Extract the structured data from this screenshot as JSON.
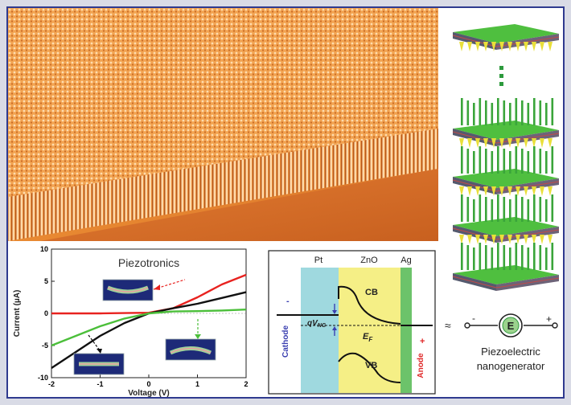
{
  "iv_plot": {
    "title": "Piezotronics",
    "xlabel": "Voltage (V)",
    "ylabel": "Current (µA)",
    "x_ticks": [
      "-2",
      "-1",
      "0",
      "1",
      "2"
    ],
    "y_ticks": [
      "10",
      "5",
      "0",
      "-5",
      "-10"
    ]
  },
  "chart_data": {
    "type": "line",
    "xlim": [
      -2,
      2
    ],
    "ylim": [
      -10,
      10
    ],
    "series": [
      {
        "color": "#e8221f",
        "x": [
          -2,
          -1.5,
          -1,
          -0.5,
          0,
          0.5,
          1,
          1.5,
          2
        ],
        "y": [
          0,
          0,
          0,
          0.05,
          0.1,
          0.8,
          2.5,
          4.5,
          6
        ]
      },
      {
        "color": "#111111",
        "x": [
          -2,
          -1.5,
          -1,
          -0.5,
          0,
          0.5,
          1,
          1.5,
          2
        ],
        "y": [
          -8.5,
          -6,
          -3.5,
          -1.5,
          0,
          0.8,
          1.5,
          2.4,
          3.3
        ]
      },
      {
        "color": "#4bbf3a",
        "x": [
          -2,
          -1.5,
          -1,
          -0.5,
          0,
          0.5,
          1,
          1.5,
          2
        ],
        "y": [
          -5,
          -3.5,
          -2,
          -0.8,
          0,
          0.3,
          0.35,
          0.45,
          0.6
        ]
      }
    ]
  },
  "band": {
    "pt": "Pt",
    "zno": "ZnO",
    "ag": "Ag",
    "cb": "CB",
    "vb": "VB",
    "ef_main": "E",
    "ef_sub": "F",
    "qv_main": "qV",
    "qv_sub": "NG",
    "cathode": "Cathode",
    "anode": "Anode",
    "minus": "-",
    "plus": "+"
  },
  "nanogen": {
    "label_line1": "Piezoelectric",
    "label_line2": "nanogenerator",
    "symbol_letter": "E",
    "minus": "-",
    "plus": "+",
    "tilde": "≈"
  },
  "colors": {
    "frame": "#2f3a8f",
    "pt_region": "#9fd9df",
    "zno_region": "#f5ef86",
    "ag_region": "#6cc36a",
    "cathode_text": "#3a3fb0",
    "anode_text": "#e02a2a",
    "nanowire": "#3aa53a",
    "substrate_top": "#4fbf3f"
  }
}
